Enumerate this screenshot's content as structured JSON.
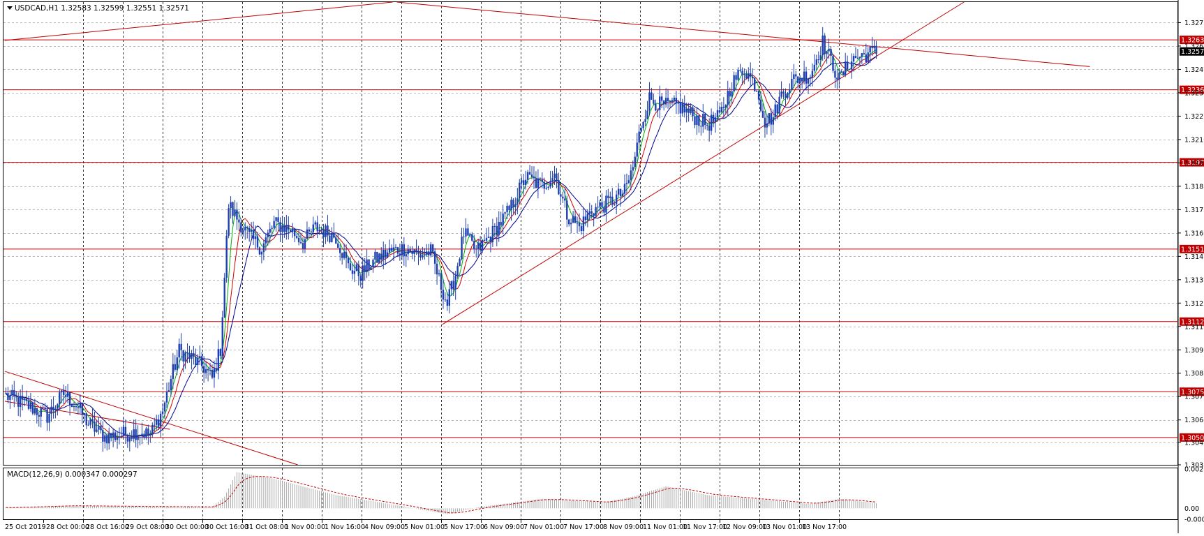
{
  "chart_data": [
    {
      "type": "candlestick",
      "symbol_header": "USDCAD,H1  1.32583 1.32599 1.32551 1.32571",
      "ylim": [
        1.3036,
        1.32835
      ],
      "y_ticks": [
        "1.32725",
        "1.32600",
        "1.32475",
        "1.32350",
        "1.32225",
        "1.32100",
        "1.31975",
        "1.31850",
        "1.31725",
        "1.31600",
        "1.31475",
        "1.31350",
        "1.31225",
        "1.31100",
        "1.30975",
        "1.30850",
        "1.30725",
        "1.30600",
        "1.30480",
        "1.30360"
      ],
      "x_labels": [
        "25 Oct 2019",
        "28 Oct 00:00",
        "28 Oct 16:00",
        "29 Oct 08:00",
        "30 Oct 00:00",
        "30 Oct 16:00",
        "31 Oct 08:00",
        "1 Nov 00:00",
        "1 Nov 16:00",
        "4 Nov 09:00",
        "5 Nov 01:00",
        "5 Nov 17:00",
        "6 Nov 09:00",
        "7 Nov 01:00",
        "7 Nov 17:00",
        "8 Nov 09:00",
        "11 Nov 01:00",
        "11 Nov 17:00",
        "12 Nov 09:00",
        "13 Nov 01:00",
        "13 Nov 17:00"
      ],
      "horizontal_levels": [
        "1.32633",
        "1.32366",
        "1.31978",
        "1.31514",
        "1.31126",
        "1.30751",
        "1.30506"
      ],
      "current_price": "1.32571",
      "price_path": [
        [
          0,
          1.3073
        ],
        [
          10,
          1.3068
        ],
        [
          20,
          1.3062
        ],
        [
          28,
          1.3074
        ],
        [
          34,
          1.3068
        ],
        [
          40,
          1.3058
        ],
        [
          48,
          1.3051
        ],
        [
          56,
          1.3052
        ],
        [
          64,
          1.3054
        ],
        [
          70,
          1.3052
        ],
        [
          76,
          1.3065
        ],
        [
          80,
          1.3082
        ],
        [
          84,
          1.3097
        ],
        [
          90,
          1.3093
        ],
        [
          96,
          1.3088
        ],
        [
          100,
          1.3082
        ],
        [
          104,
          1.3098
        ],
        [
          108,
          1.3175
        ],
        [
          112,
          1.3168
        ],
        [
          118,
          1.3158
        ],
        [
          124,
          1.3152
        ],
        [
          130,
          1.3165
        ],
        [
          138,
          1.3162
        ],
        [
          144,
          1.3155
        ],
        [
          150,
          1.3163
        ],
        [
          156,
          1.316
        ],
        [
          160,
          1.3158
        ],
        [
          166,
          1.3142
        ],
        [
          172,
          1.3138
        ],
        [
          178,
          1.3145
        ],
        [
          186,
          1.315
        ],
        [
          194,
          1.3152
        ],
        [
          200,
          1.3148
        ],
        [
          206,
          1.315
        ],
        [
          210,
          1.3135
        ],
        [
          214,
          1.3122
        ],
        [
          218,
          1.3138
        ],
        [
          222,
          1.316
        ],
        [
          228,
          1.315
        ],
        [
          236,
          1.316
        ],
        [
          244,
          1.3172
        ],
        [
          252,
          1.319
        ],
        [
          260,
          1.3185
        ],
        [
          266,
          1.3192
        ],
        [
          272,
          1.317
        ],
        [
          278,
          1.3163
        ],
        [
          284,
          1.3172
        ],
        [
          292,
          1.3176
        ],
        [
          300,
          1.3182
        ],
        [
          304,
          1.3195
        ],
        [
          308,
          1.3218
        ],
        [
          312,
          1.3232
        ],
        [
          318,
          1.3228
        ],
        [
          326,
          1.3228
        ],
        [
          334,
          1.3222
        ],
        [
          340,
          1.3218
        ],
        [
          346,
          1.3222
        ],
        [
          352,
          1.324
        ],
        [
          358,
          1.3248
        ],
        [
          364,
          1.3238
        ],
        [
          368,
          1.322
        ],
        [
          372,
          1.3222
        ],
        [
          376,
          1.3234
        ],
        [
          382,
          1.3242
        ],
        [
          390,
          1.3245
        ],
        [
          396,
          1.3262
        ],
        [
          400,
          1.3252
        ],
        [
          404,
          1.3242
        ],
        [
          410,
          1.3253
        ],
        [
          418,
          1.3256
        ],
        [
          422,
          1.3257
        ]
      ],
      "ma_series": [
        {
          "color": "#00b000",
          "smoothing": 5
        },
        {
          "color": "#d00000",
          "smoothing": 9
        },
        {
          "color": "#00008b",
          "smoothing": 16
        }
      ],
      "trendlines": [
        {
          "color": "#c00000",
          "from": [
            0,
            1.3086
          ],
          "to": [
            142,
            1.3036
          ]
        },
        {
          "color": "#c00000",
          "from": [
            0,
            1.307
          ],
          "to": [
            80,
            1.3055
          ]
        },
        {
          "color": "#c00000",
          "from": [
            212,
            1.3111
          ],
          "to": [
            465,
            1.32835
          ]
        },
        {
          "color": "#c00000",
          "from": [
            0,
            1.3263
          ],
          "to": [
            188,
            1.32835
          ]
        },
        {
          "color": "#c00000",
          "from": [
            190,
            1.32835
          ],
          "to": [
            526,
            1.3249
          ]
        }
      ],
      "colors": {
        "candle": "#1c3fb0",
        "level": "#c00000",
        "grid": "#000000",
        "level_tag": "#c00000",
        "price_tag": "#000000"
      }
    },
    {
      "type": "bar",
      "title": "MACD(12,26,9) 0.000347 0.000297",
      "y_ticks": [
        "0.002667",
        "0.00",
        "-0.00074"
      ],
      "ylim": [
        -0.00074,
        0.002667
      ],
      "series": [
        {
          "type": "histogram",
          "profile": [
            [
              0,
              5e-05
            ],
            [
              30,
              0.00018
            ],
            [
              70,
              0.00012
            ],
            [
              100,
              0.0001
            ],
            [
              106,
              0.0008
            ],
            [
              112,
              0.00245
            ],
            [
              130,
              0.002
            ],
            [
              160,
              0.0009
            ],
            [
              190,
              0.0002
            ],
            [
              214,
              -0.0004
            ],
            [
              230,
              0.0001
            ],
            [
              260,
              0.00065
            ],
            [
              290,
              0.0004
            ],
            [
              304,
              0.0008
            ],
            [
              320,
              0.0015
            ],
            [
              340,
              0.0009
            ],
            [
              370,
              0.00055
            ],
            [
              390,
              0.0003
            ],
            [
              404,
              0.00065
            ],
            [
              422,
              0.00035
            ]
          ]
        },
        {
          "type": "signal",
          "color": "#c00000"
        }
      ]
    }
  ]
}
